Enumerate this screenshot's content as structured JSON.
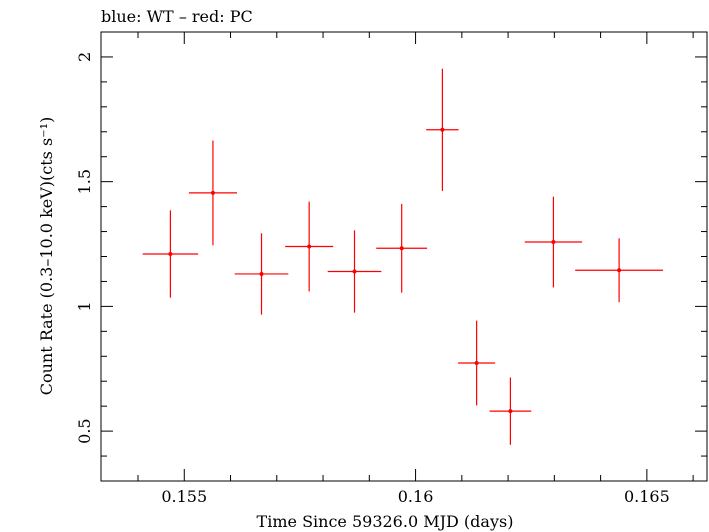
{
  "chart_data": {
    "type": "scatter",
    "title": "blue: WT – red: PC",
    "xlabel": "Time Since 59326.0 MJD (days)",
    "ylabel": "Count Rate (0.3–10.0 keV)(cts s⁻¹)",
    "xlim": [
      0.1532,
      0.1663
    ],
    "ylim": [
      0.3,
      2.1
    ],
    "x_ticks": [
      0.155,
      0.16,
      0.165
    ],
    "x_tick_labels": [
      "0.155",
      "0.16",
      "0.165"
    ],
    "y_ticks": [
      0.5,
      1,
      1.5,
      2
    ],
    "y_tick_labels": [
      "0.5",
      "1",
      "1.5",
      "2"
    ],
    "grid": false,
    "series": [
      {
        "color": "#ff0000",
        "points": [
          {
            "x": 0.1547,
            "xerr": 0.0006,
            "y": 1.21,
            "yerr": 0.175
          },
          {
            "x": 0.15562,
            "xerr": 0.00052,
            "y": 1.455,
            "yerr": 0.21
          },
          {
            "x": 0.15667,
            "xerr": 0.00058,
            "y": 1.13,
            "yerr": 0.163
          },
          {
            "x": 0.1577,
            "xerr": 0.00052,
            "y": 1.24,
            "yerr": 0.18
          },
          {
            "x": 0.15868,
            "xerr": 0.00058,
            "y": 1.14,
            "yerr": 0.165
          },
          {
            "x": 0.1597,
            "xerr": 0.00055,
            "y": 1.233,
            "yerr": 0.178
          },
          {
            "x": 0.16058,
            "xerr": 0.00035,
            "y": 1.708,
            "yerr": 0.245
          },
          {
            "x": 0.16132,
            "xerr": 0.0004,
            "y": 0.773,
            "yerr": 0.17
          },
          {
            "x": 0.16205,
            "xerr": 0.00045,
            "y": 0.58,
            "yerr": 0.135
          },
          {
            "x": 0.16298,
            "xerr": 0.00062,
            "y": 1.258,
            "yerr": 0.182
          },
          {
            "x": 0.1644,
            "xerr": 0.00095,
            "y": 1.145,
            "yerr": 0.128
          }
        ]
      }
    ]
  }
}
